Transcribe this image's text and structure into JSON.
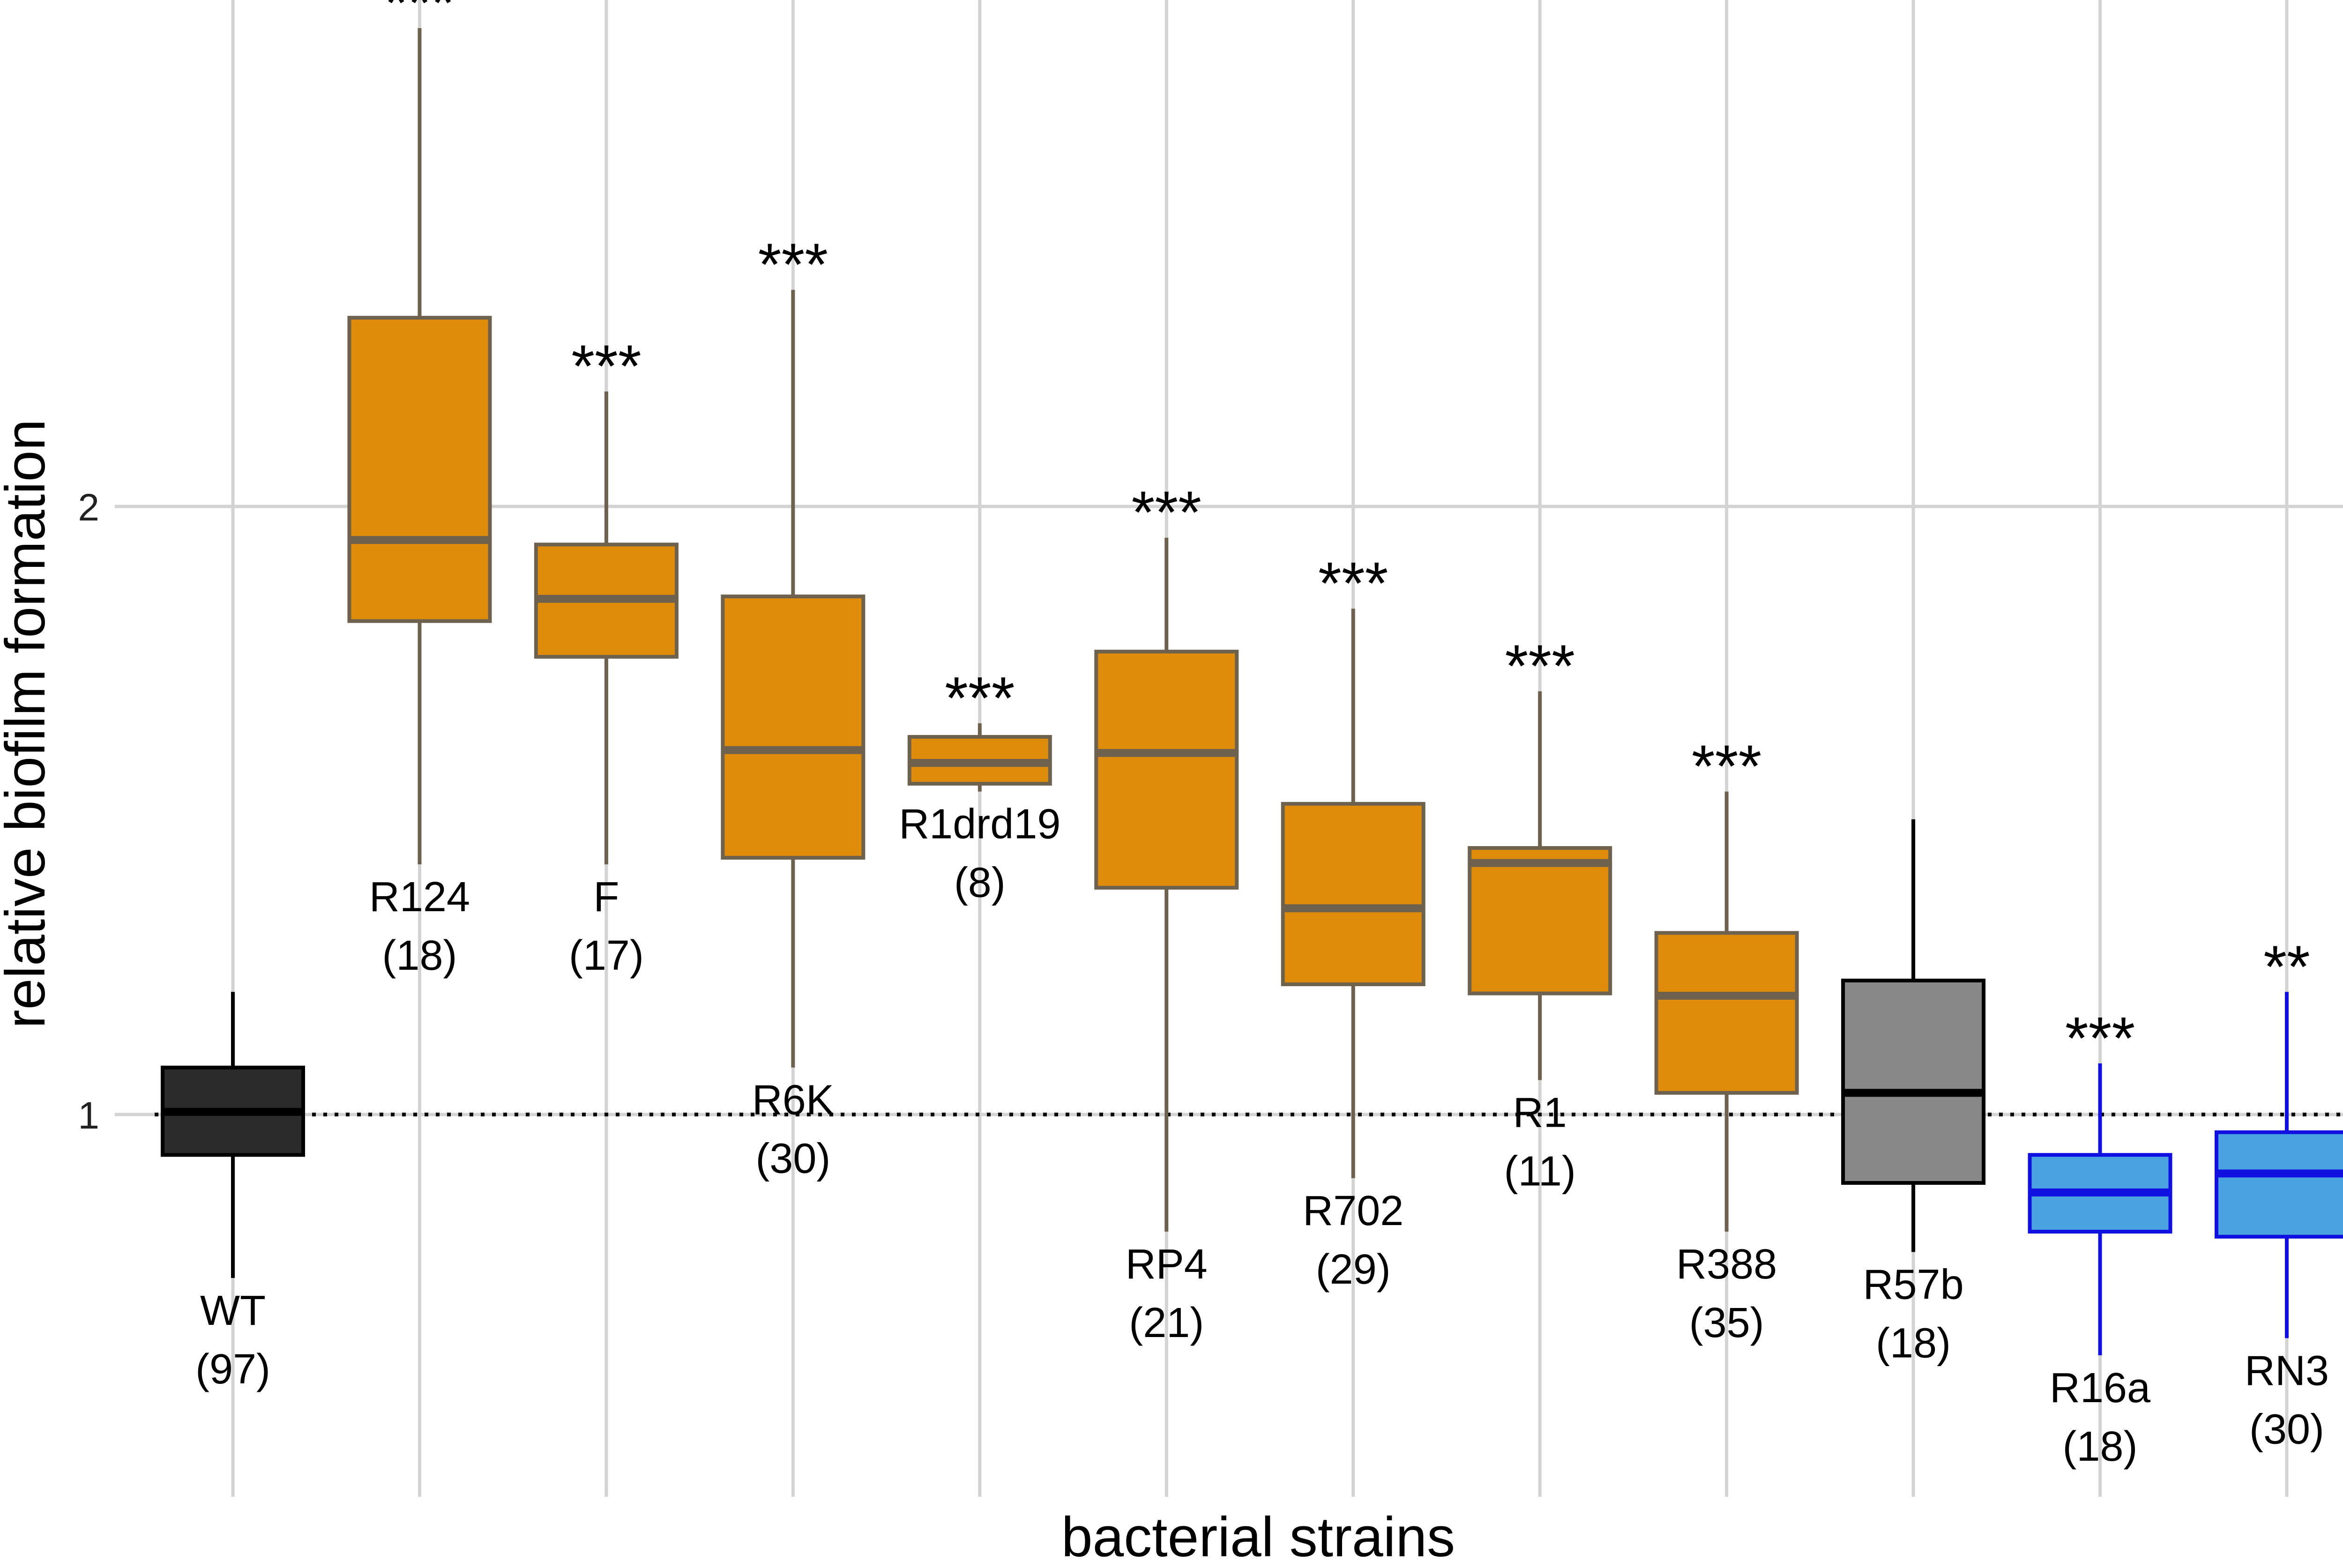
{
  "chart_data": {
    "type": "boxplot",
    "title": "",
    "xlabel": "bacterial strains",
    "ylabel": "relative biofilm formation",
    "y_scale": "log",
    "ylim": [
      0.48,
      3.9
    ],
    "y_ticks": [
      {
        "value": 1,
        "label": "1"
      },
      {
        "value": 2,
        "label": "2"
      }
    ],
    "reference_line": {
      "value": 1,
      "style": "dotted"
    },
    "grid": true,
    "boxes": [
      {
        "strain": "WT",
        "n_label": "(97)",
        "min": 0.83,
        "q1": 0.955,
        "median": 1.003,
        "q3": 1.055,
        "max": 1.15,
        "fill": "#2b2b2b",
        "stroke": "#000000",
        "median_color": "#000000",
        "stars": ""
      },
      {
        "strain": "R124",
        "n_label": "(18)",
        "min": 1.33,
        "q1": 1.755,
        "median": 1.925,
        "q3": 2.48,
        "max": 3.45,
        "fill": "#e08c0b",
        "stroke": "#6e624e",
        "median_color": "#6e624e",
        "stars": "***"
      },
      {
        "strain": "F",
        "n_label": "(17)",
        "min": 1.33,
        "q1": 1.685,
        "median": 1.8,
        "q3": 1.915,
        "max": 2.28,
        "fill": "#e08c0b",
        "stroke": "#6e624e",
        "median_color": "#6e624e",
        "stars": "***"
      },
      {
        "strain": "R6K",
        "n_label": "(30)",
        "min": 1.055,
        "q1": 1.34,
        "median": 1.515,
        "q3": 1.805,
        "max": 2.56,
        "fill": "#e08c0b",
        "stroke": "#6e624e",
        "median_color": "#6e624e",
        "stars": "***"
      },
      {
        "strain": "R1drd19",
        "n_label": "(8)",
        "min": 1.445,
        "q1": 1.458,
        "median": 1.493,
        "q3": 1.538,
        "max": 1.562,
        "fill": "#e08c0b",
        "stroke": "#6e624e",
        "median_color": "#6e624e",
        "stars": "***"
      },
      {
        "strain": "RP4",
        "n_label": "(21)",
        "min": 0.875,
        "q1": 1.295,
        "median": 1.51,
        "q3": 1.695,
        "max": 1.93,
        "fill": "#e08c0b",
        "stroke": "#6e624e",
        "median_color": "#6e624e",
        "stars": "***"
      },
      {
        "strain": "R702",
        "n_label": "(29)",
        "min": 0.93,
        "q1": 1.16,
        "median": 1.265,
        "q3": 1.425,
        "max": 1.78,
        "fill": "#e08c0b",
        "stroke": "#6e624e",
        "median_color": "#6e624e",
        "stars": "***"
      },
      {
        "strain": "R1",
        "n_label": "(11)",
        "min": 1.04,
        "q1": 1.148,
        "median": 1.332,
        "q3": 1.355,
        "max": 1.62,
        "fill": "#e08c0b",
        "stroke": "#6e624e",
        "median_color": "#6e624e",
        "stars": "***"
      },
      {
        "strain": "R388",
        "n_label": "(35)",
        "min": 0.875,
        "q1": 1.025,
        "median": 1.145,
        "q3": 1.23,
        "max": 1.445,
        "fill": "#e08c0b",
        "stroke": "#6e624e",
        "median_color": "#6e624e",
        "stars": "***"
      },
      {
        "strain": "R57b",
        "n_label": "(18)",
        "min": 0.855,
        "q1": 0.925,
        "median": 1.025,
        "q3": 1.165,
        "max": 1.4,
        "fill": "#888888",
        "stroke": "#000000",
        "median_color": "#000000",
        "stars": ""
      },
      {
        "strain": "R16a",
        "n_label": "(18)",
        "min": 0.76,
        "q1": 0.875,
        "median": 0.915,
        "q3": 0.955,
        "max": 1.06,
        "fill": "#4aa3e0",
        "stroke": "#1010e0",
        "median_color": "#1010e0",
        "stars": "***"
      },
      {
        "strain": "RN3",
        "n_label": "(30)",
        "min": 0.775,
        "q1": 0.87,
        "median": 0.935,
        "q3": 0.98,
        "max": 1.15,
        "fill": "#4aa3e0",
        "stroke": "#1010e0",
        "median_color": "#1010e0",
        "stars": "**"
      }
    ]
  }
}
